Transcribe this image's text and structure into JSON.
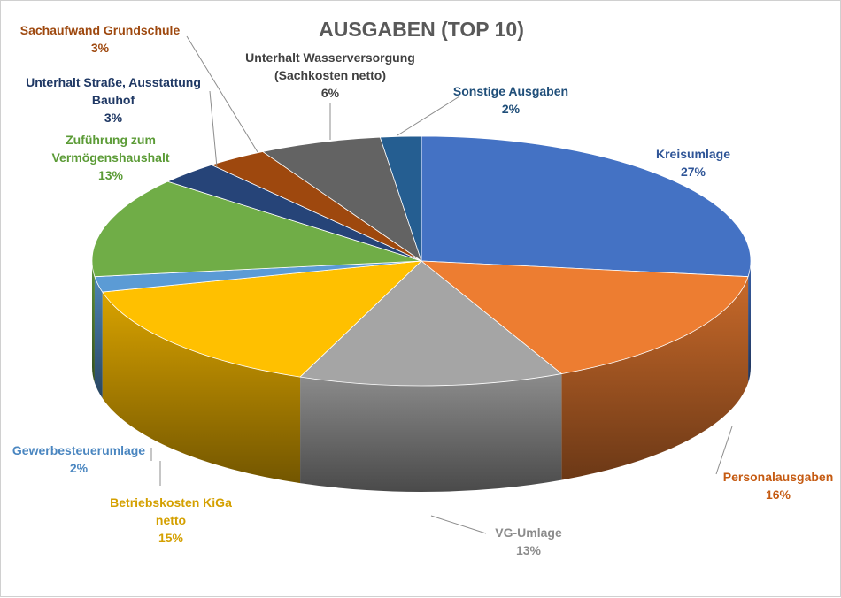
{
  "chart_data": {
    "type": "pie",
    "style": "3d",
    "title": "AUSGABEN (TOP 10)",
    "slices": [
      {
        "label": [
          "Kreisumlage"
        ],
        "value": 27,
        "pct": "27%",
        "color": "#4472c4",
        "label_color": "#2f5597"
      },
      {
        "label": [
          "Personalausgaben"
        ],
        "value": 16,
        "pct": "16%",
        "color": "#ed7d31",
        "label_color": "#c55a11"
      },
      {
        "label": [
          "VG-Umlage"
        ],
        "value": 13,
        "pct": "13%",
        "color": "#a5a5a5",
        "label_color": "#8c8c8c"
      },
      {
        "label": [
          "Betriebskosten KiGa",
          "netto"
        ],
        "value": 15,
        "pct": "15%",
        "color": "#ffc000",
        "label_color": "#d4a000"
      },
      {
        "label": [
          "Gewerbesteuerumlage"
        ],
        "value": 2,
        "pct": "2%",
        "color": "#5b9bd5",
        "label_color": "#4a86c0"
      },
      {
        "label": [
          "Zuführung zum",
          "Vermögenshaushalt"
        ],
        "value": 13,
        "pct": "13%",
        "color": "#70ad47",
        "label_color": "#5b9b36"
      },
      {
        "label": [
          "Unterhalt Straße, Ausstattung",
          "Bauhof"
        ],
        "value": 3,
        "pct": "3%",
        "color": "#264478",
        "label_color": "#1f3864"
      },
      {
        "label": [
          "Sachaufwand Grundschule"
        ],
        "value": 3,
        "pct": "3%",
        "color": "#9e480e",
        "label_color": "#9e480e"
      },
      {
        "label": [
          "Unterhalt Wasserversorgung",
          "(Sachkosten netto)"
        ],
        "value": 6,
        "pct": "6%",
        "color": "#636363",
        "label_color": "#404040"
      },
      {
        "label": [
          "Sonstige Ausgaben"
        ],
        "value": 2,
        "pct": "2%",
        "color": "#255e91",
        "label_color": "#1f4e79"
      }
    ]
  }
}
